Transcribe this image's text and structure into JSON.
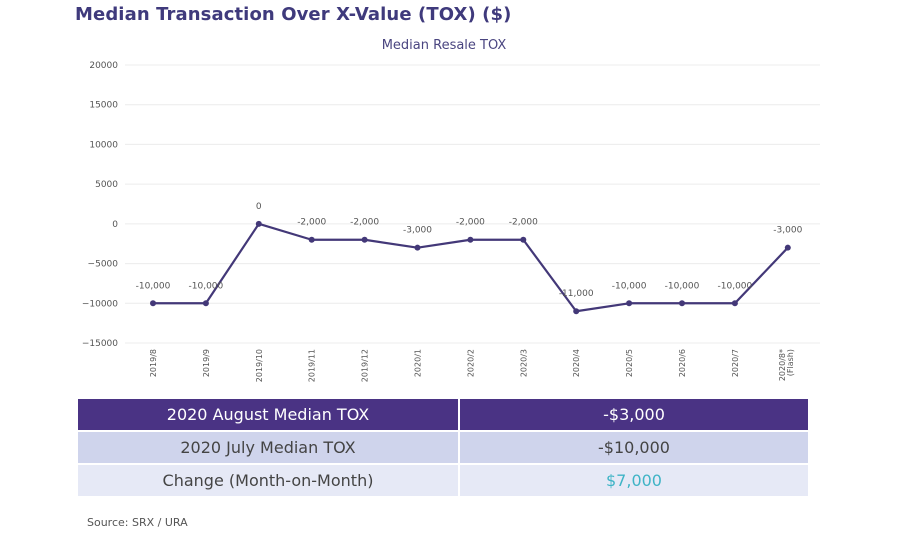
{
  "header": {
    "title": "Median Transaction Over X-Value (TOX) ($)"
  },
  "chart_data": {
    "type": "line",
    "title": "Median Resale TOX",
    "xlabel": "",
    "ylabel": "",
    "ylim": [
      -15000,
      20000
    ],
    "yticks": [
      20000,
      15000,
      10000,
      5000,
      0,
      -5000,
      -10000,
      -15000
    ],
    "ytick_labels": [
      "20000",
      "15000",
      "10000",
      "5000",
      "0",
      "−5000",
      "−10000",
      "−15000"
    ],
    "grid": true,
    "legend": "none",
    "categories": [
      "2019/8",
      "2019/9",
      "2019/10",
      "2019/11",
      "2019/12",
      "2020/1",
      "2020/2",
      "2020/3",
      "2020/4",
      "2020/5",
      "2020/6",
      "2020/7",
      "2020/8*"
    ],
    "category_sublabels": [
      "",
      "",
      "",
      "",
      "",
      "",
      "",
      "",
      "",
      "",
      "",
      "",
      "(Flash)"
    ],
    "series": [
      {
        "name": "Median Resale TOX",
        "color": "#433878",
        "values": [
          -10000,
          -10000,
          0,
          -2000,
          -2000,
          -3000,
          -2000,
          -2000,
          -11000,
          -10000,
          -10000,
          -10000,
          -3000
        ],
        "data_labels": [
          "-10,000",
          "-10,000",
          "0",
          "-2,000",
          "-2,000",
          "-3,000",
          "-2,000",
          "-2,000",
          "-11,000",
          "-10,000",
          "-10,000",
          "-10,000",
          "-3,000"
        ]
      }
    ]
  },
  "summary_table": {
    "rows": [
      {
        "label": "2020 August Median TOX",
        "value": "-$3,000"
      },
      {
        "label": "2020 July Median TOX",
        "value": "-$10,000"
      },
      {
        "label": "Change (Month-on-Month)",
        "value": "$7,000"
      }
    ]
  },
  "colors": {
    "title": "#3f3a7c",
    "line": "#433878",
    "table_header": "#4a3384",
    "table_row_light": "#cfd4ec",
    "table_row_lighter": "#e6e9f6",
    "positive_change": "#3fb4c6"
  },
  "footer": {
    "source": "Source: SRX / URA"
  }
}
